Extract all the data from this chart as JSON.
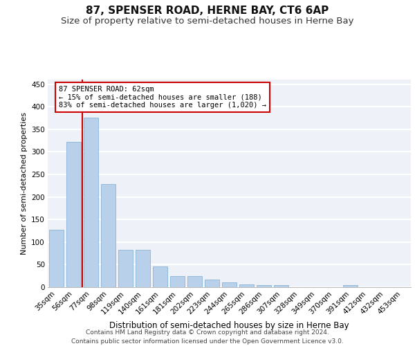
{
  "title1": "87, SPENSER ROAD, HERNE BAY, CT6 6AP",
  "title2": "Size of property relative to semi-detached houses in Herne Bay",
  "xlabel": "Distribution of semi-detached houses by size in Herne Bay",
  "ylabel": "Number of semi-detached properties",
  "categories": [
    "35sqm",
    "56sqm",
    "77sqm",
    "98sqm",
    "119sqm",
    "140sqm",
    "161sqm",
    "181sqm",
    "202sqm",
    "223sqm",
    "244sqm",
    "265sqm",
    "286sqm",
    "307sqm",
    "328sqm",
    "349sqm",
    "370sqm",
    "391sqm",
    "412sqm",
    "432sqm",
    "453sqm"
  ],
  "values": [
    128,
    322,
    375,
    229,
    83,
    83,
    46,
    25,
    25,
    17,
    10,
    6,
    5,
    5,
    0,
    0,
    0,
    5,
    0,
    0,
    0
  ],
  "bar_color": "#b8d0ea",
  "bar_edge_color": "#8ab4d8",
  "vline_x": 1.5,
  "vline_color": "#cc0000",
  "annotation_title": "87 SPENSER ROAD: 62sqm",
  "annotation_line1": "← 15% of semi-detached houses are smaller (188)",
  "annotation_line2": "83% of semi-detached houses are larger (1,020) →",
  "annotation_box_color": "#ffffff",
  "annotation_box_edge": "#cc0000",
  "footer1": "Contains HM Land Registry data © Crown copyright and database right 2024.",
  "footer2": "Contains public sector information licensed under the Open Government Licence v3.0.",
  "ylim": [
    0,
    460
  ],
  "yticks": [
    0,
    50,
    100,
    150,
    200,
    250,
    300,
    350,
    400,
    450
  ],
  "bg_color": "#eef2f8",
  "grid_color": "#ffffff",
  "title1_fontsize": 11,
  "title2_fontsize": 9.5,
  "xlabel_fontsize": 8.5,
  "ylabel_fontsize": 8,
  "tick_fontsize": 7.5,
  "footer_fontsize": 6.5
}
